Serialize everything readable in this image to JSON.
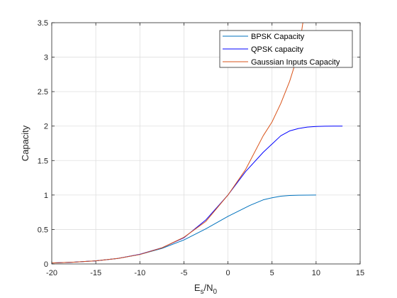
{
  "chart_data": {
    "type": "line",
    "xlabel": "E_s/N_0",
    "xlabel_main": "E",
    "xlabel_sub1": "s",
    "xlabel_mid": "/N",
    "xlabel_sub2": "0",
    "ylabel": "Capacity",
    "xlim": [
      -20,
      15
    ],
    "ylim": [
      0,
      3.5
    ],
    "xticks": [
      -20,
      -15,
      -10,
      -5,
      0,
      5,
      10,
      15
    ],
    "yticks": [
      0,
      0.5,
      1,
      1.5,
      2,
      2.5,
      3,
      3.5
    ],
    "xtick_labels": [
      "-20",
      "-15",
      "-10",
      "-5",
      "0",
      "5",
      "10",
      "15"
    ],
    "ytick_labels": [
      "0",
      "0.5",
      "1",
      "1.5",
      "2",
      "2.5",
      "3",
      "3.5"
    ],
    "grid": true,
    "legend_position": "top-right",
    "series": [
      {
        "name": "BPSK Capacity",
        "color": "#0072BD",
        "x": [
          -20,
          -17.5,
          -15,
          -12.5,
          -10,
          -7.5,
          -5,
          -2.5,
          0,
          2.5,
          4,
          5,
          6,
          7,
          8,
          9,
          10
        ],
        "y": [
          0.014,
          0.026,
          0.045,
          0.08,
          0.137,
          0.225,
          0.348,
          0.51,
          0.69,
          0.85,
          0.93,
          0.96,
          0.983,
          0.993,
          0.997,
          0.999,
          1.0
        ]
      },
      {
        "name": "QPSK capacity",
        "color": "#0000FF",
        "x": [
          -20,
          -17.5,
          -15,
          -12.5,
          -10,
          -7.5,
          -5,
          -2.5,
          0,
          2,
          4,
          5,
          6,
          7,
          8,
          9,
          10,
          11,
          12,
          13
        ],
        "y": [
          0.014,
          0.026,
          0.045,
          0.08,
          0.14,
          0.234,
          0.38,
          0.64,
          1.0,
          1.34,
          1.62,
          1.74,
          1.86,
          1.93,
          1.965,
          1.985,
          1.994,
          1.998,
          1.999,
          2.0
        ]
      },
      {
        "name": "Gaussian Inputs Capacity",
        "color": "#D95319",
        "x": [
          -20,
          -17.5,
          -15,
          -12.5,
          -10,
          -7.5,
          -5,
          -2.5,
          0,
          2,
          4,
          5,
          6,
          7,
          8,
          8.5
        ],
        "y": [
          0.014,
          0.026,
          0.045,
          0.08,
          0.137,
          0.233,
          0.387,
          0.618,
          1.0,
          1.37,
          1.86,
          2.06,
          2.33,
          2.65,
          3.06,
          3.5
        ]
      }
    ]
  }
}
